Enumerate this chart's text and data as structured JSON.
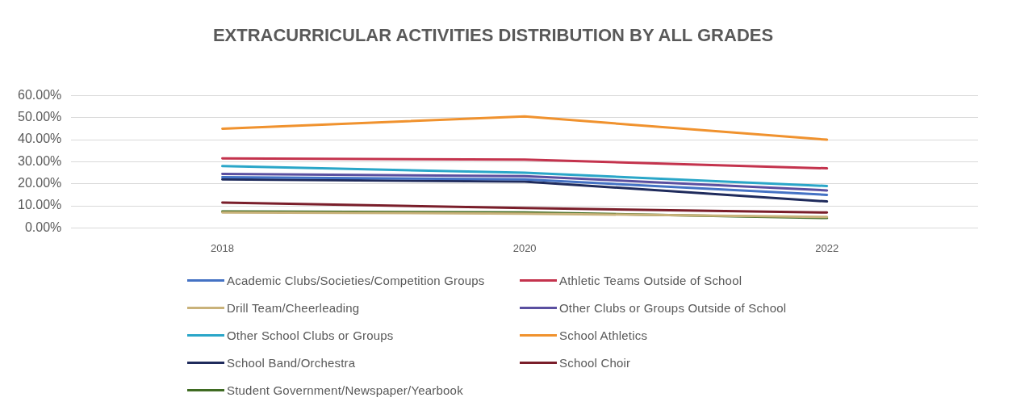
{
  "chart_data": {
    "type": "line",
    "title": "EXTRACURRICULAR ACTIVITIES DISTRIBUTION BY ALL GRADES",
    "categories": [
      "2018",
      "2020",
      "2022"
    ],
    "series": [
      {
        "name": "Academic Clubs/Societies/Competition Groups",
        "color": "#4472c4",
        "values": [
          23,
          22,
          15
        ]
      },
      {
        "name": "Athletic Teams Outside of School",
        "color": "#c4334d",
        "values": [
          31.5,
          31,
          27
        ]
      },
      {
        "name": "Drill Team/Cheerleading",
        "color": "#c9b27a",
        "values": [
          7,
          6.5,
          5
        ]
      },
      {
        "name": "Other Clubs or Groups Outside of School",
        "color": "#5a4fa0",
        "values": [
          24.5,
          23.5,
          17
        ]
      },
      {
        "name": "Other School Clubs or Groups",
        "color": "#2aa6c8",
        "values": [
          28,
          25,
          19
        ]
      },
      {
        "name": "School Athletics",
        "color": "#f0922e",
        "values": [
          45,
          50.5,
          40
        ]
      },
      {
        "name": "School Band/Orchestra",
        "color": "#1f2b5c",
        "values": [
          22,
          21,
          12
        ]
      },
      {
        "name": "School Choir",
        "color": "#7a1e2a",
        "values": [
          11.5,
          9,
          7
        ]
      },
      {
        "name": "Student Government/Newspaper/Yearbook",
        "color": "#3f6b22",
        "values": [
          7.5,
          7,
          4.5
        ]
      }
    ],
    "ylim": [
      0,
      60
    ],
    "yticks": [
      {
        "value": 0,
        "label": "0.00%"
      },
      {
        "value": 10,
        "label": "10.00%"
      },
      {
        "value": 20,
        "label": "20.00%"
      },
      {
        "value": 30,
        "label": "30.00%"
      },
      {
        "value": 40,
        "label": "40.00%"
      },
      {
        "value": 50,
        "label": "50.00%"
      },
      {
        "value": 60,
        "label": "60.00%"
      }
    ],
    "grid": "y",
    "legend": "bottom",
    "marker": "none",
    "line_style": "solid"
  }
}
